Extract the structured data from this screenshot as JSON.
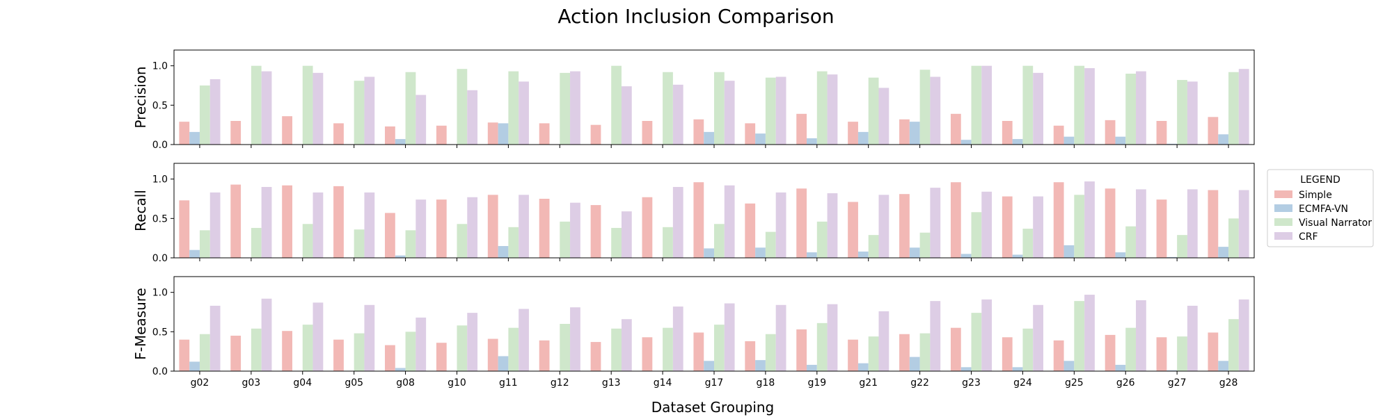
{
  "chart_data": {
    "type": "bar",
    "title": "Action Inclusion Comparison",
    "xlabel": "Dataset Grouping",
    "categories": [
      "g02",
      "g03",
      "g04",
      "g05",
      "g08",
      "g10",
      "g11",
      "g12",
      "g13",
      "g14",
      "g17",
      "g18",
      "g19",
      "g21",
      "g22",
      "g23",
      "g24",
      "g25",
      "g26",
      "g27",
      "g28"
    ],
    "legend": {
      "title": "LEGEND",
      "placement": "center-right outside",
      "entries": [
        "Simple",
        "ECMFA-VN",
        "Visual Narrator",
        "CRF"
      ]
    },
    "colors": {
      "Simple": "#f2b8b5",
      "ECMFA-VN": "#b3cde3",
      "Visual Narrator": "#cfe7cb",
      "CRF": "#ddcde5"
    },
    "yticks": [
      0.0,
      0.5,
      1.0
    ],
    "ylim": [
      0,
      1.2
    ],
    "grid": false,
    "panels": [
      {
        "ylabel": "Precision",
        "series": [
          {
            "name": "Simple",
            "values": [
              0.29,
              0.3,
              0.36,
              0.27,
              0.23,
              0.24,
              0.28,
              0.27,
              0.25,
              0.3,
              0.32,
              0.27,
              0.39,
              0.29,
              0.32,
              0.39,
              0.3,
              0.24,
              0.31,
              0.3,
              0.35
            ]
          },
          {
            "name": "ECMFA-VN",
            "values": [
              0.16,
              0.0,
              0.0,
              0.0,
              0.07,
              0.0,
              0.27,
              0.0,
              0.0,
              0.0,
              0.16,
              0.14,
              0.08,
              0.16,
              0.29,
              0.06,
              0.07,
              0.1,
              0.1,
              0.01,
              0.13
            ]
          },
          {
            "name": "Visual Narrator",
            "values": [
              0.75,
              1.0,
              1.0,
              0.81,
              0.92,
              0.96,
              0.93,
              0.91,
              1.0,
              0.92,
              0.92,
              0.85,
              0.93,
              0.85,
              0.95,
              1.0,
              1.0,
              1.0,
              0.9,
              0.82,
              0.92
            ]
          },
          {
            "name": "CRF",
            "values": [
              0.83,
              0.93,
              0.91,
              0.86,
              0.63,
              0.69,
              0.8,
              0.93,
              0.74,
              0.76,
              0.81,
              0.86,
              0.89,
              0.72,
              0.86,
              1.0,
              0.91,
              0.97,
              0.93,
              0.8,
              0.96
            ]
          }
        ]
      },
      {
        "ylabel": "Recall",
        "series": [
          {
            "name": "Simple",
            "values": [
              0.73,
              0.93,
              0.92,
              0.91,
              0.57,
              0.74,
              0.8,
              0.75,
              0.67,
              0.77,
              0.96,
              0.69,
              0.88,
              0.71,
              0.81,
              0.96,
              0.78,
              0.96,
              0.88,
              0.74,
              0.86
            ]
          },
          {
            "name": "ECMFA-VN",
            "values": [
              0.1,
              0.0,
              0.0,
              0.0,
              0.03,
              0.0,
              0.15,
              0.0,
              0.0,
              0.0,
              0.12,
              0.13,
              0.07,
              0.08,
              0.13,
              0.05,
              0.04,
              0.16,
              0.07,
              0.01,
              0.14
            ]
          },
          {
            "name": "Visual Narrator",
            "values": [
              0.35,
              0.38,
              0.43,
              0.36,
              0.35,
              0.43,
              0.39,
              0.46,
              0.38,
              0.39,
              0.43,
              0.33,
              0.46,
              0.29,
              0.32,
              0.58,
              0.37,
              0.8,
              0.4,
              0.29,
              0.5
            ]
          },
          {
            "name": "CRF",
            "values": [
              0.83,
              0.9,
              0.83,
              0.83,
              0.74,
              0.77,
              0.8,
              0.7,
              0.59,
              0.9,
              0.92,
              0.83,
              0.82,
              0.8,
              0.89,
              0.84,
              0.78,
              0.97,
              0.87,
              0.87,
              0.86
            ]
          }
        ]
      },
      {
        "ylabel": "F-Measure",
        "series": [
          {
            "name": "Simple",
            "values": [
              0.4,
              0.45,
              0.51,
              0.4,
              0.33,
              0.36,
              0.41,
              0.39,
              0.37,
              0.43,
              0.49,
              0.38,
              0.53,
              0.4,
              0.47,
              0.55,
              0.43,
              0.39,
              0.46,
              0.43,
              0.49
            ]
          },
          {
            "name": "ECMFA-VN",
            "values": [
              0.12,
              0.0,
              0.0,
              0.0,
              0.04,
              0.0,
              0.19,
              0.0,
              0.0,
              0.0,
              0.13,
              0.14,
              0.08,
              0.1,
              0.18,
              0.05,
              0.05,
              0.13,
              0.08,
              0.01,
              0.13
            ]
          },
          {
            "name": "Visual Narrator",
            "values": [
              0.47,
              0.54,
              0.59,
              0.48,
              0.5,
              0.58,
              0.55,
              0.6,
              0.54,
              0.55,
              0.59,
              0.47,
              0.61,
              0.44,
              0.48,
              0.74,
              0.54,
              0.89,
              0.55,
              0.44,
              0.66
            ]
          },
          {
            "name": "CRF",
            "values": [
              0.83,
              0.92,
              0.87,
              0.84,
              0.68,
              0.74,
              0.79,
              0.81,
              0.66,
              0.82,
              0.86,
              0.84,
              0.85,
              0.76,
              0.89,
              0.91,
              0.84,
              0.97,
              0.9,
              0.83,
              0.91
            ]
          }
        ]
      }
    ]
  }
}
